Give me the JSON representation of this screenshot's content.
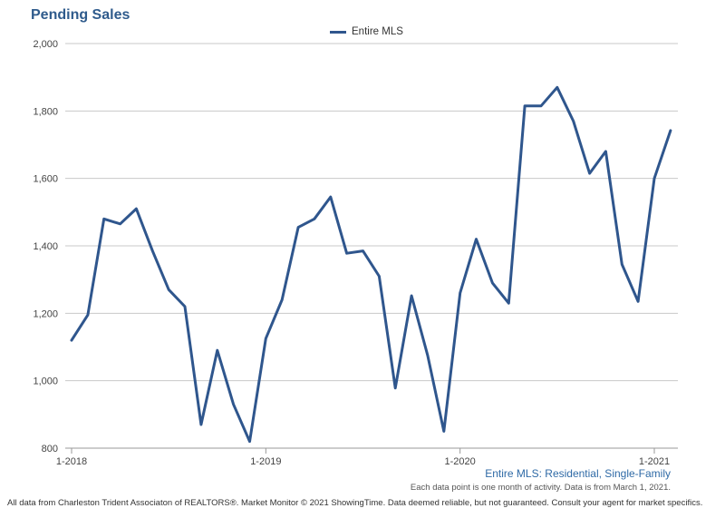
{
  "chart_data": {
    "type": "line",
    "title": "Pending Sales",
    "legend": {
      "placement": "top-center",
      "entries": [
        "Entire MLS"
      ]
    },
    "x": [
      "2018-01",
      "2018-02",
      "2018-03",
      "2018-04",
      "2018-05",
      "2018-06",
      "2018-07",
      "2018-08",
      "2018-09",
      "2018-10",
      "2018-11",
      "2018-12",
      "2019-01",
      "2019-02",
      "2019-03",
      "2019-04",
      "2019-05",
      "2019-06",
      "2019-07",
      "2019-08",
      "2019-09",
      "2019-10",
      "2019-11",
      "2019-12",
      "2020-01",
      "2020-02",
      "2020-03",
      "2020-04",
      "2020-05",
      "2020-06",
      "2020-07",
      "2020-08",
      "2020-09",
      "2020-10",
      "2020-11",
      "2020-12",
      "2021-01",
      "2021-02"
    ],
    "x_tick_labels": [
      "1-2018",
      "1-2019",
      "1-2020",
      "1-2021"
    ],
    "series": [
      {
        "name": "Entire MLS",
        "color": "#2f568d",
        "values": [
          1120,
          1195,
          1480,
          1465,
          1510,
          1385,
          1270,
          1220,
          870,
          1090,
          930,
          820,
          1125,
          1240,
          1455,
          1480,
          1545,
          1378,
          1385,
          1310,
          978,
          1252,
          1075,
          850,
          1260,
          1420,
          1290,
          1230,
          1815,
          1815,
          1870,
          1770,
          1615,
          1680,
          1345,
          1235,
          1600,
          1742
        ]
      }
    ],
    "ylim": [
      800,
      2000
    ],
    "y_ticks": [
      800,
      1000,
      1200,
      1400,
      1600,
      1800,
      2000
    ],
    "y_tick_labels": [
      "800",
      "1,000",
      "1,200",
      "1,400",
      "1,600",
      "1,800",
      "2,000"
    ],
    "grid": true,
    "subtitle": "Entire MLS: Residential, Single-Family",
    "note": "Each data point is one month of activity. Data is from March 1, 2021."
  },
  "footer": "All data from Charleston Trident Associaton of REALTORS®. Market Monitor © 2021 ShowingTime. Data deemed reliable, but not guaranteed. Consult your agent for market specifics."
}
